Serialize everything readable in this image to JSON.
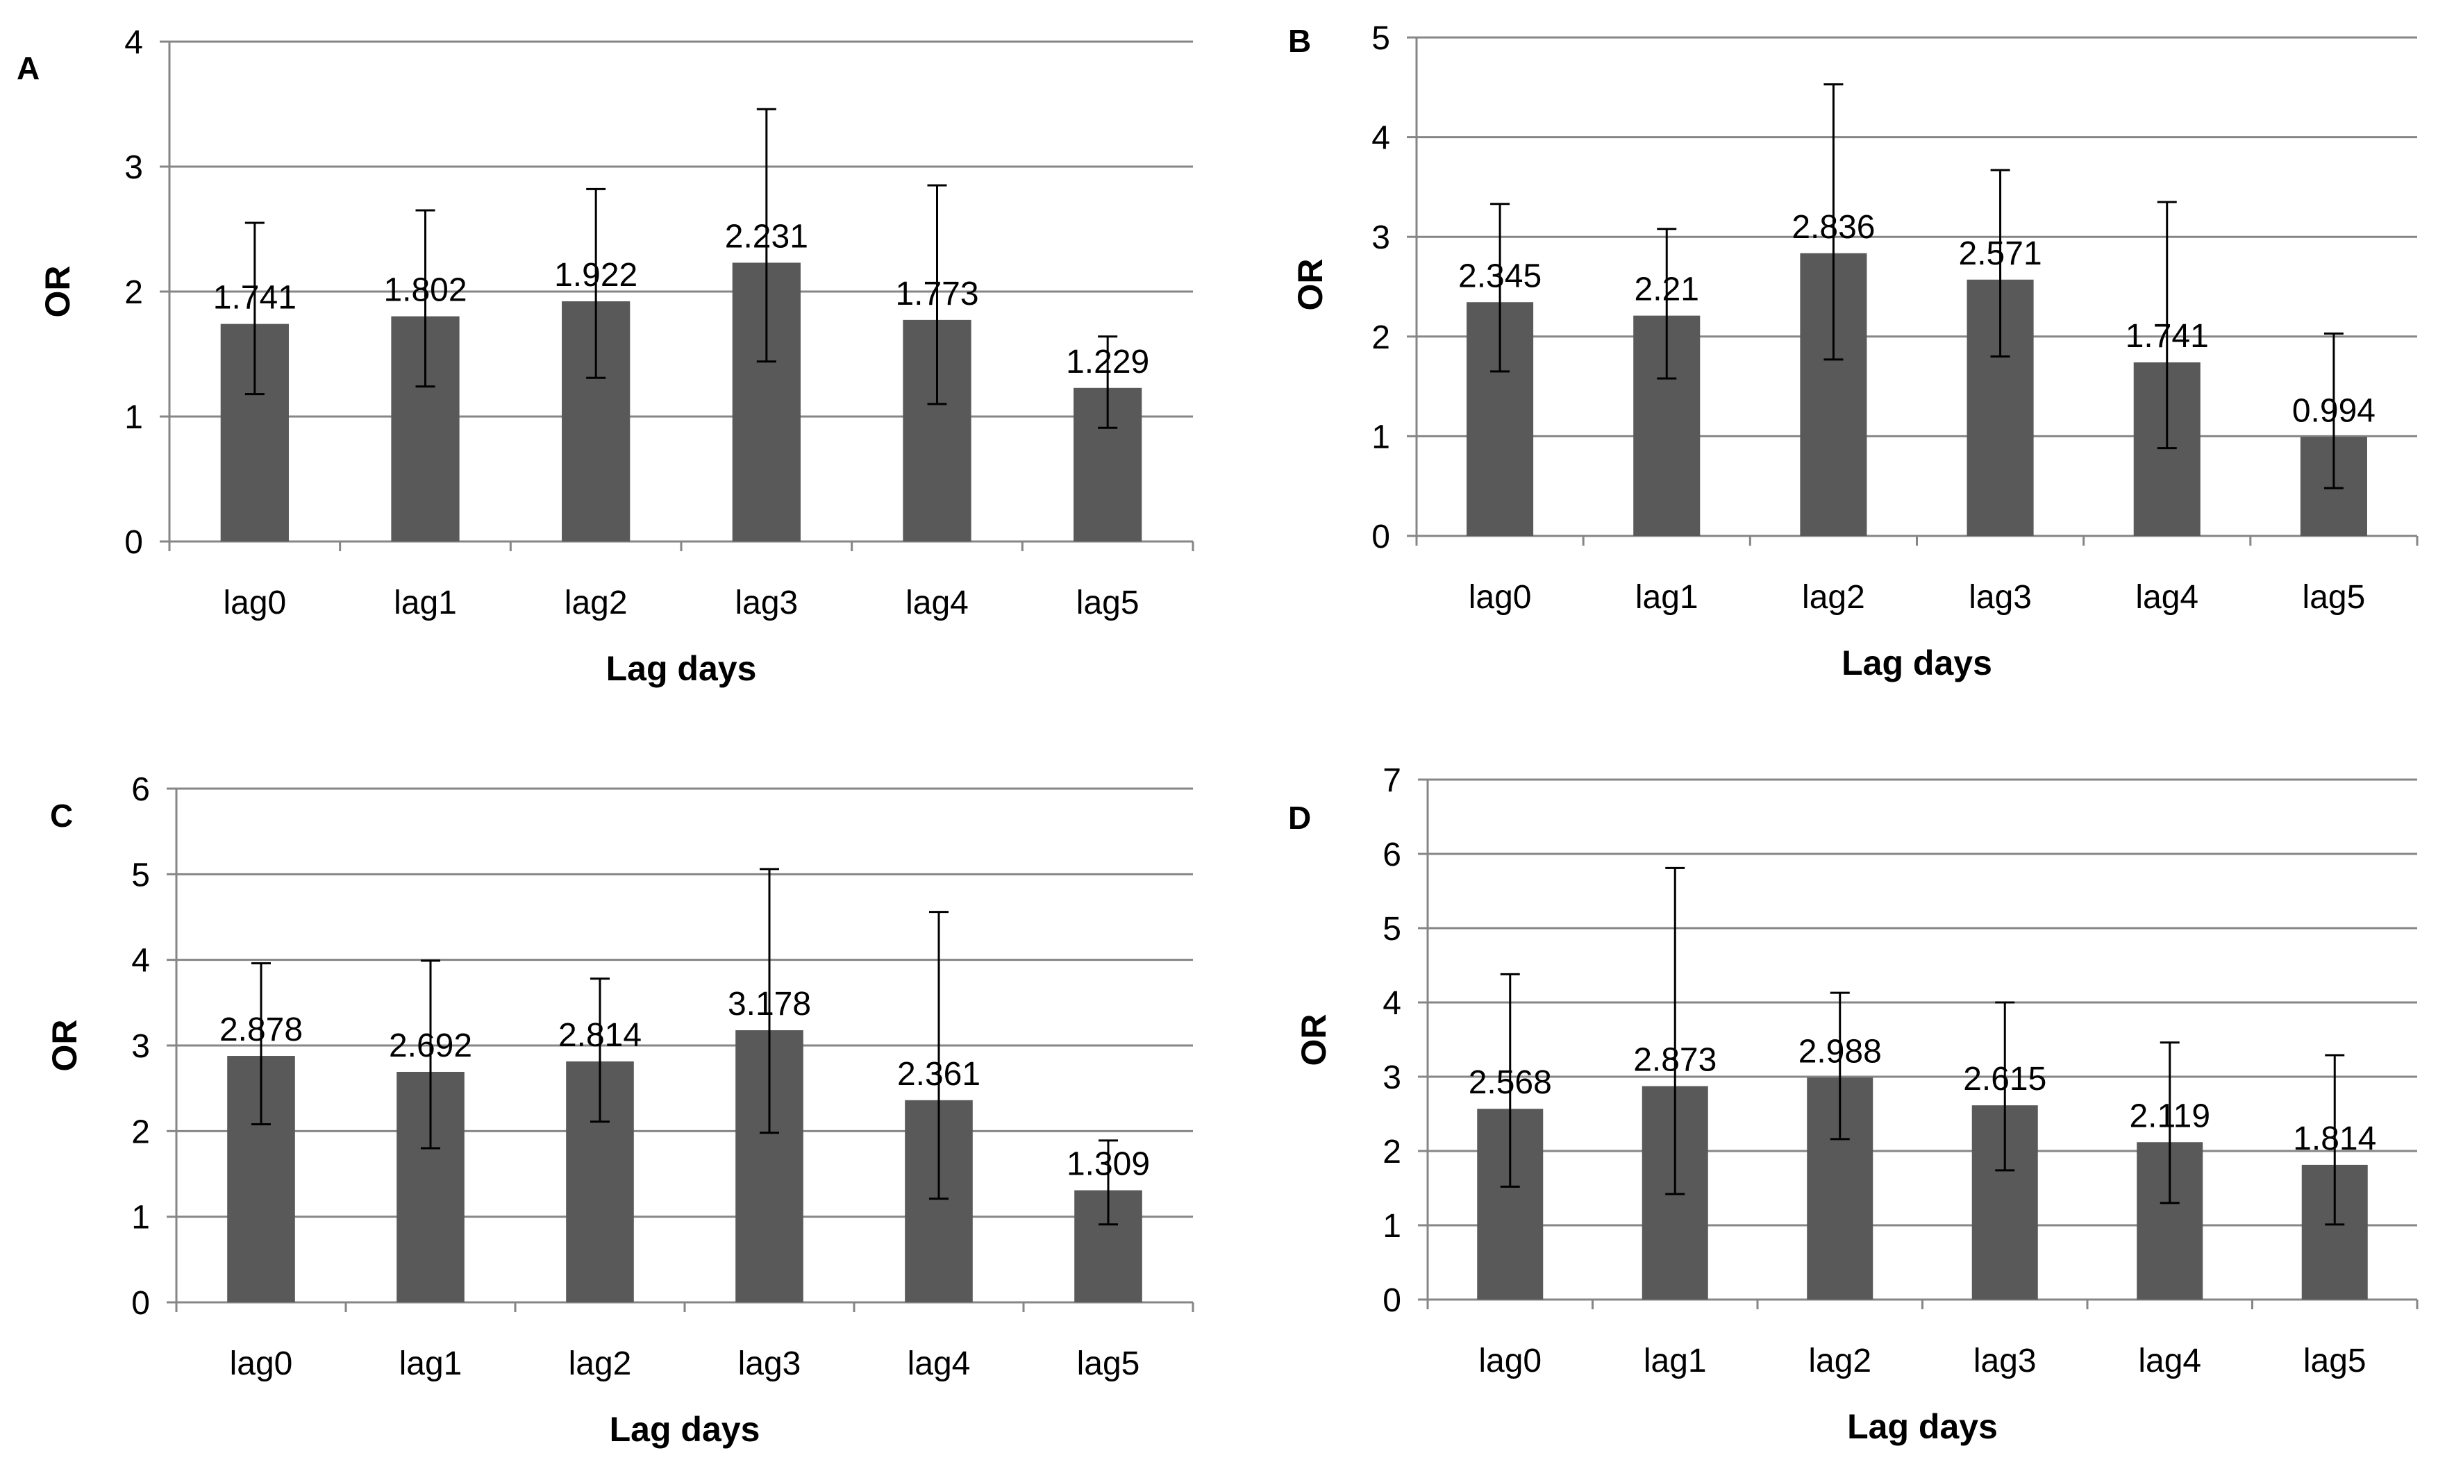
{
  "chart_data": [
    {
      "type": "bar",
      "panel_label": "A",
      "categories": [
        "lag0",
        "lag1",
        "lag2",
        "lag3",
        "lag4",
        "lag5"
      ],
      "series": [
        {
          "values": [
            1.741,
            1.802,
            1.922,
            2.231,
            1.773,
            1.229
          ],
          "value_labels": [
            "1.741",
            "1.802",
            "1.922",
            "2.231",
            "1.773",
            "1.229"
          ],
          "ci_lower": [
            1.18,
            1.24,
            1.31,
            1.44,
            1.1,
            0.91
          ],
          "ci_upper": [
            2.55,
            2.65,
            2.82,
            3.46,
            2.85,
            1.64
          ]
        }
      ],
      "xlabel": "Lag days",
      "ylabel": "OR",
      "ylim": [
        0,
        4
      ],
      "yticks": [
        "0",
        "1",
        "2",
        "3",
        "4"
      ],
      "grid": true,
      "bar_color": "#595959"
    },
    {
      "type": "bar",
      "panel_label": "B",
      "categories": [
        "lag0",
        "lag1",
        "lag2",
        "lag3",
        "lag4",
        "lag5"
      ],
      "series": [
        {
          "values": [
            2.345,
            2.21,
            2.836,
            2.571,
            1.741,
            0.994
          ],
          "value_labels": [
            "2.345",
            "2.21",
            "2.836",
            "2.571",
            "1.741",
            "0.994"
          ],
          "ci_lower": [
            1.65,
            1.58,
            1.77,
            1.8,
            0.88,
            0.48
          ],
          "ci_upper": [
            3.33,
            3.08,
            4.53,
            3.67,
            3.35,
            2.03
          ]
        }
      ],
      "xlabel": "Lag days",
      "ylabel": "OR",
      "ylim": [
        0,
        5
      ],
      "yticks": [
        "0",
        "1",
        "2",
        "3",
        "4",
        "5"
      ],
      "grid": true,
      "bar_color": "#595959"
    },
    {
      "type": "bar",
      "panel_label": "C",
      "categories": [
        "lag0",
        "lag1",
        "lag2",
        "lag3",
        "lag4",
        "lag5"
      ],
      "series": [
        {
          "values": [
            2.878,
            2.692,
            2.814,
            3.178,
            2.361,
            1.309
          ],
          "value_labels": [
            "2.878",
            "2.692",
            "2.814",
            "3.178",
            "2.361",
            "1.309"
          ],
          "ci_lower": [
            2.08,
            1.8,
            2.11,
            1.98,
            1.21,
            0.91
          ],
          "ci_upper": [
            3.96,
            3.99,
            3.78,
            5.06,
            4.56,
            1.89
          ]
        }
      ],
      "xlabel": "Lag days",
      "ylabel": "OR",
      "ylim": [
        0,
        6
      ],
      "yticks": [
        "0",
        "1",
        "2",
        "3",
        "4",
        "5",
        "6"
      ],
      "grid": true,
      "bar_color": "#595959"
    },
    {
      "type": "bar",
      "panel_label": "D",
      "categories": [
        "lag0",
        "lag1",
        "lag2",
        "lag3",
        "lag4",
        "lag5"
      ],
      "series": [
        {
          "values": [
            2.568,
            2.873,
            2.988,
            2.615,
            2.119,
            1.814
          ],
          "value_labels": [
            "2.568",
            "2.873",
            "2.988",
            "2.615",
            "2.119",
            "1.814"
          ],
          "ci_lower": [
            1.52,
            1.42,
            2.16,
            1.74,
            1.3,
            1.01
          ],
          "ci_upper": [
            4.38,
            5.81,
            4.13,
            4.0,
            3.46,
            3.29
          ]
        }
      ],
      "xlabel": "Lag days",
      "ylabel": "OR",
      "ylim": [
        0,
        7
      ],
      "yticks": [
        "0",
        "1",
        "2",
        "3",
        "4",
        "5",
        "6",
        "7"
      ],
      "grid": true,
      "bar_color": "#595959"
    }
  ]
}
